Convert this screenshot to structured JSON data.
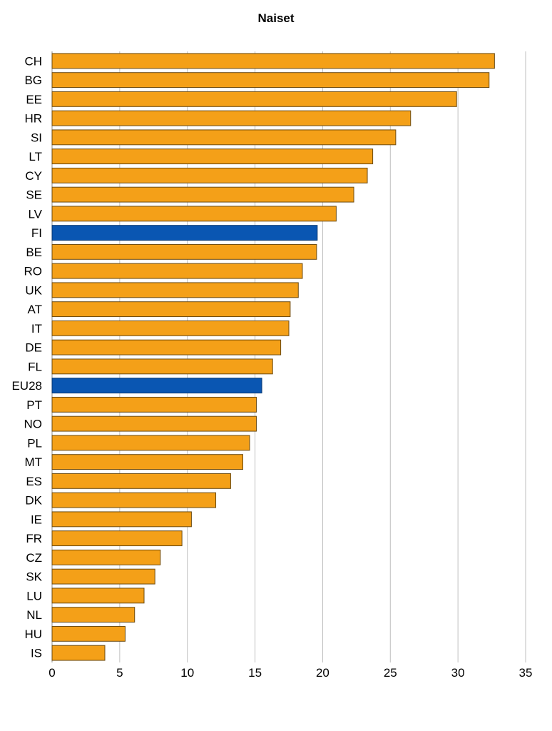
{
  "chart_data": {
    "type": "bar",
    "orientation": "horizontal",
    "title": "Naiset",
    "xlabel": "",
    "ylabel": "",
    "xlim": [
      0,
      35
    ],
    "xticks": [
      0,
      5,
      10,
      15,
      20,
      25,
      30,
      35
    ],
    "grid": true,
    "legend": "none",
    "colors": {
      "default": "#f4a018",
      "highlight": "#0a56b2",
      "border": "#6b4a10",
      "grid": "#bfbfbf"
    },
    "categories": [
      "CH",
      "BG",
      "EE",
      "HR",
      "SI",
      "LT",
      "CY",
      "SE",
      "LV",
      "FI",
      "BE",
      "RO",
      "UK",
      "AT",
      "IT",
      "DE",
      "FL",
      "EU28",
      "PT",
      "NO",
      "PL",
      "MT",
      "ES",
      "DK",
      "IE",
      "FR",
      "CZ",
      "SK",
      "LU",
      "NL",
      "HU",
      "IS"
    ],
    "values": [
      32.7,
      32.3,
      29.9,
      26.5,
      25.4,
      23.7,
      23.3,
      22.3,
      21.0,
      19.6,
      19.55,
      18.5,
      18.2,
      17.6,
      17.5,
      16.9,
      16.3,
      15.5,
      15.1,
      15.1,
      14.6,
      14.1,
      13.2,
      12.1,
      10.3,
      9.6,
      8.0,
      7.6,
      6.8,
      6.1,
      5.4,
      3.9
    ],
    "highlight": [
      "FI",
      "EU28"
    ]
  }
}
